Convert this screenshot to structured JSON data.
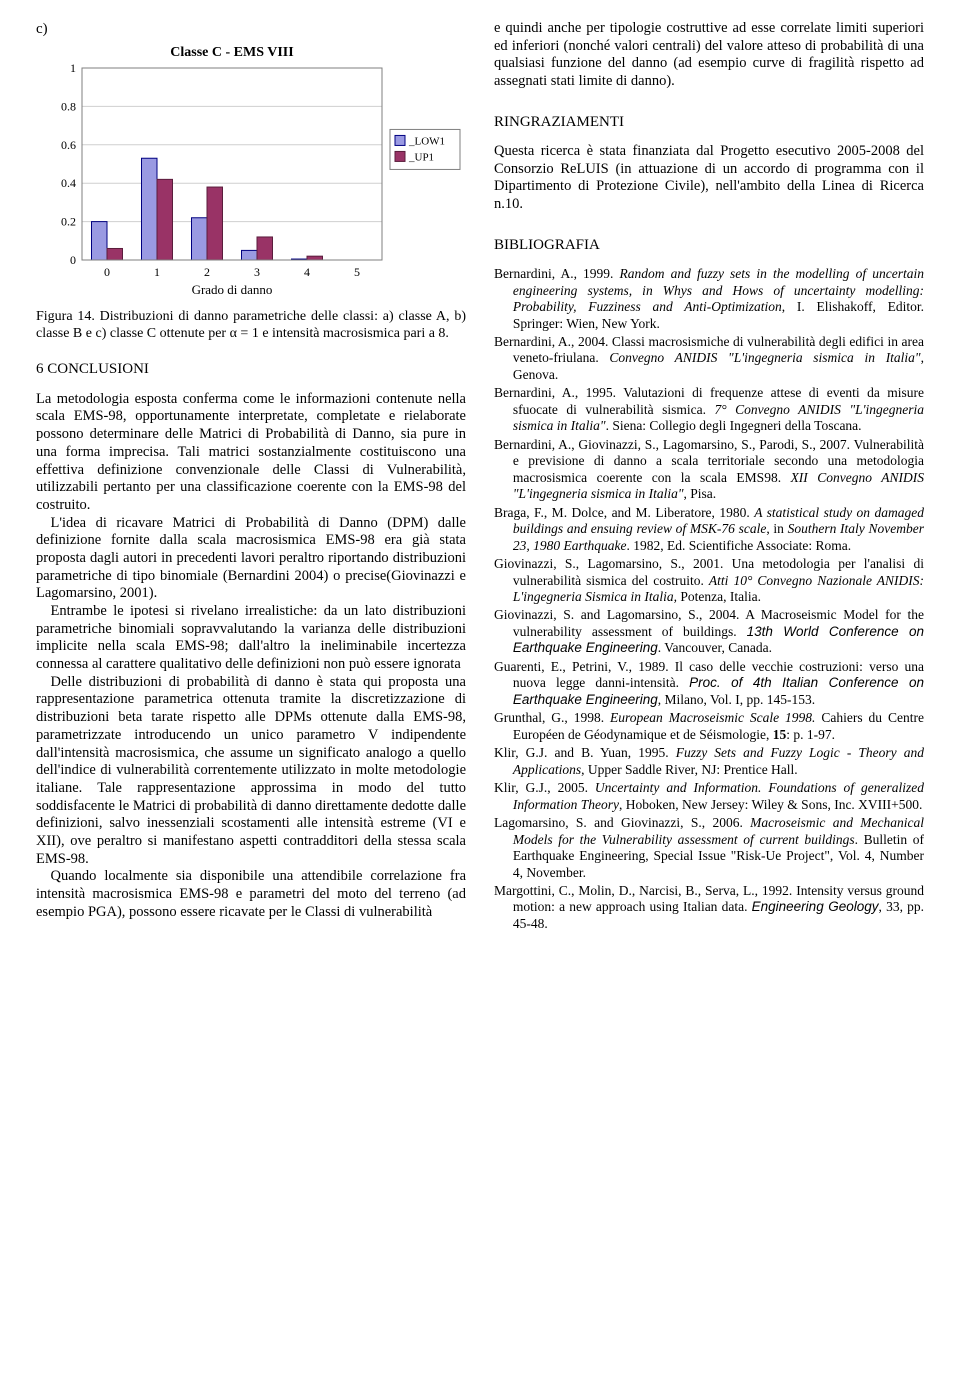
{
  "chart": {
    "type": "bar",
    "subfig_label": "c)",
    "title": "Classe C - EMS VIII",
    "xlabel": "Grado di danno",
    "categories": [
      0,
      1,
      2,
      3,
      4,
      5
    ],
    "series": [
      {
        "name": "_LOW1",
        "color": "#9a9ae2",
        "border": "#000080",
        "values": [
          0.2,
          0.53,
          0.22,
          0.05,
          0.005,
          0
        ]
      },
      {
        "name": "_UP1",
        "color": "#993366",
        "border": "#5a1d3c",
        "values": [
          0.06,
          0.42,
          0.38,
          0.12,
          0.02,
          0
        ]
      }
    ],
    "ylim": [
      0,
      1
    ],
    "yticks": [
      0,
      0.2,
      0.4,
      0.6,
      0.8,
      1
    ],
    "bar_group_width": 0.62,
    "plot_border_color": "#7f7f7f",
    "grid_color": "#cfcfcf",
    "background_color": "#ffffff",
    "tick_fontsize": 12,
    "title_fontsize": 14,
    "axis_title_fontsize": 13,
    "legend_fontsize": 11
  },
  "figcaption": "Figura 14. Distribuzioni di danno parametriche delle classi: a) classe A, b) classe B e c) classe C ottenute per α = 1 e intensità macrosismica pari a 8.",
  "section_conclusioni": "6   CONCLUSIONI",
  "p1": "La metodologia esposta conferma come le informazioni contenute nella scala EMS-98, opportunamente interpretate, completate e rielaborate possono determinare delle Matrici di Probabilità di Danno, sia pure in una forma imprecisa. Tali matrici sostanzialmente costituiscono una effettiva definizione convenzionale delle Classi di Vulnerabilità, utilizzabili pertanto per una classificazione coerente con la EMS-98 del costruito.",
  "p2": "L'idea di ricavare Matrici di Probabilità di Danno (DPM) dalle definizione fornite dalla scala macrosismica EMS-98 era già stata proposta dagli autori in precedenti lavori peraltro riportando distribuzioni parametriche di tipo binomiale (Bernardini 2004) o precise(Giovinazzi e Lagomarsino, 2001).",
  "p3": "Entrambe le ipotesi si rivelano irrealistiche: da un lato distribuzioni parametriche binomiali sopravvalutando la varianza delle distribuzioni implicite nella scala EMS-98; dall'altro la ineliminabile incertezza connessa al carattere qualitativo delle definizioni non può essere ignorata",
  "p4": "Delle distribuzioni di probabilità di danno è stata qui proposta una rappresentazione parametrica ottenuta tramite la discretizzazione di distribuzioni beta tarate rispetto alle DPMs ottenute dalla EMS-98, parametrizzate introducendo un unico parametro V indipendente dall'intensità macrosismica, che assume un significato analogo a quello dell'indice di vulnerabilità correntemente utilizzato in molte metodologie italiane. Tale rappresentazione approssima in modo del tutto soddisfacente le Matrici di probabilità di danno direttamente dedotte dalle definizioni, salvo inessenziali scostamenti alle intensità estreme (VI e XII), ove peraltro si manifestano aspetti contradditori della stessa scala EMS-98.",
  "p5": "Quando localmente sia disponibile una attendibile correlazione fra intensità macrosismica EMS-98 e parametri del moto del terreno (ad esempio PGA), possono essere ricavate per le Classi di vulnerabilità",
  "p6": "e quindi anche per tipologie costruttive ad esse correlate limiti superiori ed inferiori (nonché valori centrali) del valore atteso di probabilità di una qualsiasi funzione del danno (ad esempio curve di fragilità rispetto ad assegnati stati limite di danno).",
  "section_ringraziamenti": "RINGRAZIAMENTI",
  "p7": "Questa ricerca è stata finanziata dal Progetto esecutivo 2005-2008 del Consorzio ReLUIS (in attuazione di un accordo di programma con il Dipartimento di Protezione Civile), nell'ambito della Linea di Ricerca n.10.",
  "section_bibliografia": "BIBLIOGRAFIA",
  "refs": [
    {
      "pre": "Bernardini, A., 1999. ",
      "it": "Random and fuzzy sets in the modelling of uncertain engineering systems, in Whys and Hows of uncertainty modelling: Probability, Fuzziness and Anti-Optimization",
      "post": ", I. Elishakoff, Editor. Springer: Wien, New York."
    },
    {
      "pre": "Bernardini, A., 2004. Classi macrosismiche di vulnerabilità degli edifici in area veneto-friulana. ",
      "it": "Convegno ANIDIS \"L'ingegneria sismica in Italia\"",
      "post": ", Genova."
    },
    {
      "pre": "Bernardini, A., 1995. Valutazioni di frequenze attese di eventi da misure sfuocate di vulnerabilità sismica. ",
      "it": "7° Convegno ANIDIS \"L'ingegneria sismica in Italia\"",
      "post": ". Siena: Collegio degli Ingegneri della Toscana."
    },
    {
      "pre": "Bernardini, A., Giovinazzi, S., Lagomarsino, S., Parodi, S., 2007. Vulnerabilità e previsione di danno a scala territoriale secondo una metodologia macrosismica coerente con la scala EMS98. ",
      "it": "XII Convegno ANIDIS \"L'ingegneria sismica in Italia\"",
      "post": ", Pisa."
    },
    {
      "pre": "Braga, F., M. Dolce, and M. Liberatore, 1980. ",
      "it": "A statistical study on damaged buildings and ensuing review of MSK-76 scale",
      "post": ", in ",
      "it2": "Southern Italy November 23, 1980 Earthquake",
      "post2": ". 1982, Ed. Scientifiche Associate: Roma."
    },
    {
      "pre": "Giovinazzi, S., Lagomarsino, S., 2001. Una metodologia per l'analisi di vulnerabilità sismica del costruito. ",
      "it": "Atti 10° Convegno Nazionale ANIDIS: L'ingegneria Sismica in Italia,",
      "post": " Potenza, Italia."
    },
    {
      "pre": "Giovinazzi, S. and Lagomarsino, S., 2004. A Macroseismic Model for the vulnerability assessment of buildings. ",
      "sans_it": "13th World Conference on Earthquake Engineering",
      "post": ". Vancouver, Canada."
    },
    {
      "pre": "Guarenti, E., Petrini, V., 1989. Il caso delle vecchie costruzioni: verso una nuova legge danni-intensità. ",
      "sans_it": "Proc. of 4th Italian Conference on Earthquake Engineering",
      "post": ", Milano, Vol. I, pp. 145-153."
    },
    {
      "pre": "Grunthal, G., 1998. ",
      "it": "European Macroseismic Scale 1998.",
      "post": " Cahiers du Centre Européen de Géodynamique et de Séismologie, ",
      "bold": "15",
      "post2": ": p. 1-97."
    },
    {
      "pre": "Klir, G.J. and B. Yuan, 1995. ",
      "it": "Fuzzy Sets and Fuzzy Logic - Theory and Applications",
      "post": ", Upper Saddle River, NJ: Prentice Hall."
    },
    {
      "pre": "Klir, G.J., 2005. ",
      "it": "Uncertainty and Information. Foundations of generalized Information Theory",
      "post": ", Hoboken, New Jersey: Wiley & Sons, Inc. XVIII+500."
    },
    {
      "pre": "Lagomarsino, S. and Giovinazzi, S., 2006. ",
      "it": "Macroseismic and Mechanical Models for the Vulnerability assessment of current buildings",
      "post": ". Bulletin of Earthquake Engineering, Special Issue \"Risk-Ue Project\", Vol. 4, Number 4, November."
    },
    {
      "pre": "Margottini, C., Molin, D., Narcisi, B., Serva, L., 1992. Intensity versus ground motion: a new approach using Italian data. ",
      "sans_it": "Engineering Geology",
      "post": ", 33, pp. 45-48."
    }
  ]
}
